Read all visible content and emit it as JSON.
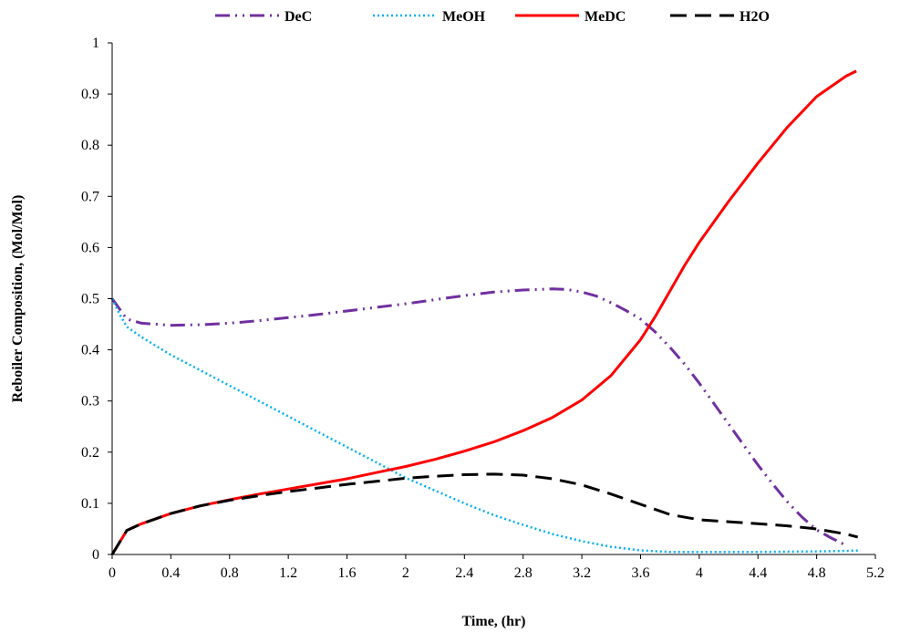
{
  "chart_data": {
    "type": "line",
    "title": "",
    "xlabel": "Time, (hr)",
    "ylabel": "Reboiler Composition, (Mol/Mol)",
    "xlim": [
      0,
      5.2
    ],
    "ylim": [
      0,
      1
    ],
    "x_ticks": [
      "0",
      "0.4",
      "0.8",
      "1.2",
      "1.6",
      "2",
      "2.4",
      "2.8",
      "3.2",
      "3.6",
      "4",
      "4.4",
      "4.8",
      "5.2"
    ],
    "y_ticks": [
      "0",
      "0.1",
      "0.2",
      "0.3",
      "0.4",
      "0.5",
      "0.6",
      "0.7",
      "0.8",
      "0.9",
      "1"
    ],
    "grid": false,
    "legend_position": "top",
    "series": [
      {
        "name": "DeC",
        "color": "#7030A0",
        "dash": "dash-dot-dot",
        "points": [
          [
            0,
            0.5
          ],
          [
            0.1,
            0.46
          ],
          [
            0.2,
            0.452
          ],
          [
            0.4,
            0.448
          ],
          [
            0.6,
            0.449
          ],
          [
            0.8,
            0.452
          ],
          [
            1.0,
            0.457
          ],
          [
            1.2,
            0.463
          ],
          [
            1.4,
            0.469
          ],
          [
            1.6,
            0.476
          ],
          [
            1.8,
            0.483
          ],
          [
            2.0,
            0.49
          ],
          [
            2.2,
            0.498
          ],
          [
            2.4,
            0.506
          ],
          [
            2.6,
            0.513
          ],
          [
            2.8,
            0.517
          ],
          [
            3.0,
            0.519
          ],
          [
            3.1,
            0.518
          ],
          [
            3.2,
            0.513
          ],
          [
            3.3,
            0.505
          ],
          [
            3.4,
            0.492
          ],
          [
            3.5,
            0.477
          ],
          [
            3.6,
            0.46
          ],
          [
            3.7,
            0.435
          ],
          [
            3.8,
            0.405
          ],
          [
            3.9,
            0.372
          ],
          [
            4.0,
            0.335
          ],
          [
            4.1,
            0.295
          ],
          [
            4.2,
            0.255
          ],
          [
            4.3,
            0.215
          ],
          [
            4.4,
            0.175
          ],
          [
            4.5,
            0.138
          ],
          [
            4.6,
            0.103
          ],
          [
            4.7,
            0.073
          ],
          [
            4.8,
            0.048
          ],
          [
            4.9,
            0.032
          ],
          [
            5.0,
            0.018
          ]
        ]
      },
      {
        "name": "MeOH",
        "color": "#00B0F0",
        "dash": "dotted",
        "points": [
          [
            0,
            0.5
          ],
          [
            0.05,
            0.47
          ],
          [
            0.1,
            0.445
          ],
          [
            0.2,
            0.425
          ],
          [
            0.4,
            0.39
          ],
          [
            0.6,
            0.36
          ],
          [
            0.8,
            0.33
          ],
          [
            1.0,
            0.3
          ],
          [
            1.2,
            0.27
          ],
          [
            1.4,
            0.24
          ],
          [
            1.6,
            0.21
          ],
          [
            1.8,
            0.18
          ],
          [
            2.0,
            0.15
          ],
          [
            2.2,
            0.125
          ],
          [
            2.4,
            0.1
          ],
          [
            2.6,
            0.077
          ],
          [
            2.8,
            0.058
          ],
          [
            3.0,
            0.04
          ],
          [
            3.2,
            0.026
          ],
          [
            3.4,
            0.015
          ],
          [
            3.6,
            0.008
          ],
          [
            3.8,
            0.005
          ],
          [
            4.0,
            0.005
          ],
          [
            4.4,
            0.005
          ],
          [
            4.8,
            0.006
          ],
          [
            5.0,
            0.007
          ],
          [
            5.1,
            0.008
          ]
        ]
      },
      {
        "name": "MeDC",
        "color": "#FF0000",
        "dash": "solid",
        "points": [
          [
            0,
            0
          ],
          [
            0.1,
            0.047
          ],
          [
            0.2,
            0.06
          ],
          [
            0.4,
            0.08
          ],
          [
            0.6,
            0.095
          ],
          [
            0.8,
            0.107
          ],
          [
            1.0,
            0.118
          ],
          [
            1.2,
            0.128
          ],
          [
            1.4,
            0.138
          ],
          [
            1.6,
            0.148
          ],
          [
            1.8,
            0.16
          ],
          [
            2.0,
            0.172
          ],
          [
            2.2,
            0.186
          ],
          [
            2.4,
            0.202
          ],
          [
            2.6,
            0.22
          ],
          [
            2.8,
            0.242
          ],
          [
            3.0,
            0.268
          ],
          [
            3.2,
            0.302
          ],
          [
            3.4,
            0.35
          ],
          [
            3.6,
            0.42
          ],
          [
            3.7,
            0.465
          ],
          [
            3.8,
            0.515
          ],
          [
            3.9,
            0.565
          ],
          [
            4.0,
            0.61
          ],
          [
            4.2,
            0.69
          ],
          [
            4.4,
            0.765
          ],
          [
            4.6,
            0.835
          ],
          [
            4.8,
            0.895
          ],
          [
            5.0,
            0.935
          ],
          [
            5.07,
            0.945
          ]
        ]
      },
      {
        "name": "H2O",
        "color": "#000000",
        "dash": "long-dash",
        "points": [
          [
            0,
            0
          ],
          [
            0.1,
            0.047
          ],
          [
            0.2,
            0.06
          ],
          [
            0.4,
            0.08
          ],
          [
            0.6,
            0.095
          ],
          [
            0.8,
            0.106
          ],
          [
            1.0,
            0.115
          ],
          [
            1.2,
            0.123
          ],
          [
            1.4,
            0.13
          ],
          [
            1.6,
            0.137
          ],
          [
            1.8,
            0.143
          ],
          [
            2.0,
            0.149
          ],
          [
            2.2,
            0.153
          ],
          [
            2.4,
            0.156
          ],
          [
            2.6,
            0.157
          ],
          [
            2.8,
            0.155
          ],
          [
            3.0,
            0.148
          ],
          [
            3.2,
            0.136
          ],
          [
            3.4,
            0.118
          ],
          [
            3.6,
            0.098
          ],
          [
            3.8,
            0.078
          ],
          [
            4.0,
            0.068
          ],
          [
            4.2,
            0.064
          ],
          [
            4.4,
            0.06
          ],
          [
            4.6,
            0.056
          ],
          [
            4.8,
            0.05
          ],
          [
            5.0,
            0.04
          ],
          [
            5.08,
            0.034
          ]
        ]
      }
    ]
  }
}
